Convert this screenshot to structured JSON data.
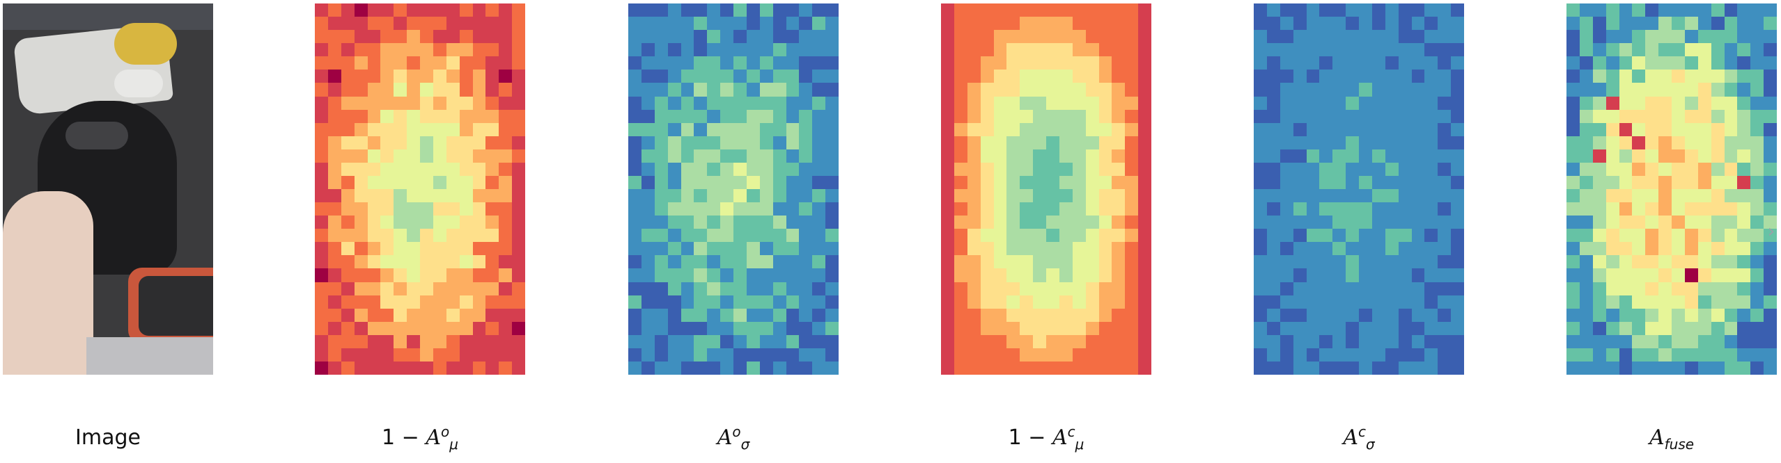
{
  "captions": {
    "image": "Image",
    "one_minus": "1 − ",
    "a": "A",
    "mu": "μ",
    "sigma": "σ",
    "o": "o",
    "c": "c",
    "fuse": "fuse"
  },
  "heatmaps": [
    {
      "name": "one-minus-a-mu-o-heatmap",
      "pattern": "noisy-warm-border-green-center",
      "level_outer": 0.82,
      "level_inner": 0.38
    },
    {
      "name": "a-sigma-o-heatmap",
      "pattern": "blue-border-green-center",
      "level_outer": 0.12,
      "level_inner": 0.34
    },
    {
      "name": "one-minus-a-mu-c-heatmap",
      "pattern": "red-edges-yellow-ring-green-center",
      "level_outer": 0.9,
      "level_inner": 0.25
    },
    {
      "name": "a-sigma-c-heatmap",
      "pattern": "mostly-blue",
      "level_outer": 0.1,
      "level_inner": 0.22
    },
    {
      "name": "a-fuse-heatmap",
      "pattern": "blue-border-yellow-center-red-spots",
      "level_outer": 0.15,
      "level_inner": 0.55
    }
  ],
  "colors": {
    "colormap": [
      "#3a5fb0",
      "#3f8fbf",
      "#66c2a5",
      "#abdda4",
      "#e6f598",
      "#fee08b",
      "#fdae61",
      "#f46d43",
      "#d53e4f",
      "#9e0142"
    ]
  },
  "icons": {
    "next": "chevron-right-icon"
  }
}
